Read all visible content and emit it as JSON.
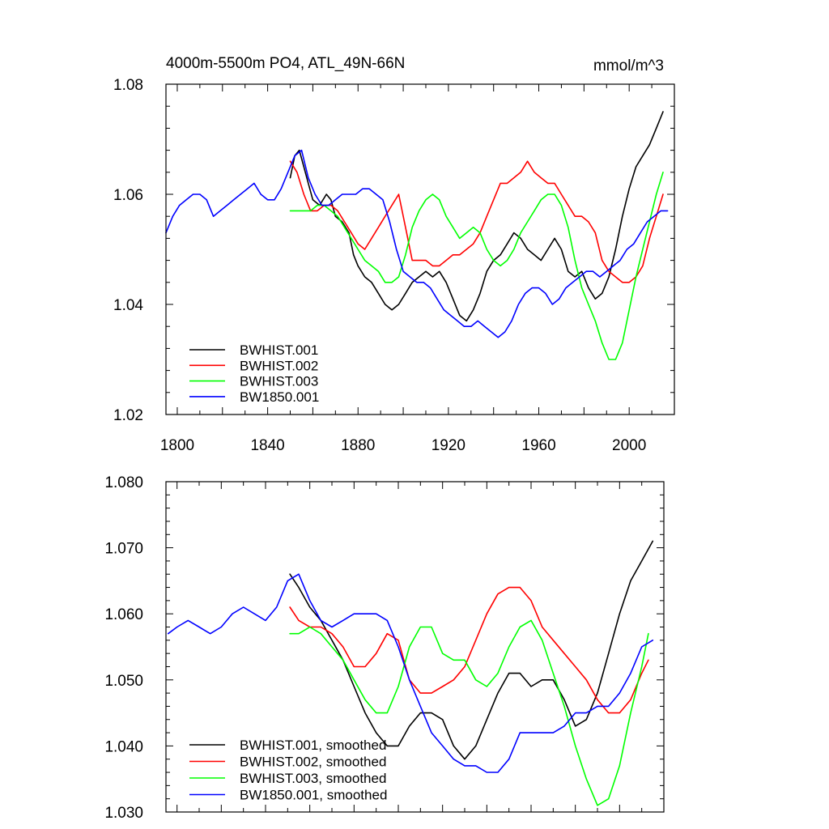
{
  "chart_data": [
    {
      "type": "line",
      "title": "4000m-5500m PO4, ATL_49N-66N",
      "units": "mmol/m^3",
      "xlabel": "",
      "ylabel": "",
      "xlim": [
        1795,
        2020
      ],
      "ylim": [
        1.02,
        1.08
      ],
      "x_ticks": [
        1800,
        1840,
        1880,
        1920,
        1960,
        2000
      ],
      "x_tick_labels": [
        "1800",
        "1840",
        "1880",
        "1920",
        "1960",
        "2000"
      ],
      "y_ticks": [
        1.02,
        1.04,
        1.06,
        1.08
      ],
      "y_tick_labels": [
        "1.02",
        "1.04",
        "1.06",
        "1.08"
      ],
      "grid": false,
      "legend_position": "bottom-left",
      "series": [
        {
          "name": "BWHIST.001",
          "color": "#000000",
          "x": [
            1850,
            1852,
            1854,
            1856,
            1858,
            1860,
            1863,
            1866,
            1868,
            1870,
            1873,
            1876,
            1878,
            1880,
            1883,
            1886,
            1889,
            1892,
            1895,
            1898,
            1901,
            1904,
            1907,
            1910,
            1913,
            1916,
            1919,
            1922,
            1925,
            1928,
            1931,
            1934,
            1937,
            1940,
            1943,
            1946,
            1949,
            1952,
            1955,
            1958,
            1961,
            1964,
            1967,
            1970,
            1973,
            1976,
            1979,
            1982,
            1985,
            1988,
            1991,
            1994,
            1997,
            2000,
            2003,
            2006,
            2009,
            2012,
            2015
          ],
          "y": [
            1.063,
            1.067,
            1.068,
            1.065,
            1.062,
            1.059,
            1.058,
            1.06,
            1.059,
            1.056,
            1.055,
            1.053,
            1.049,
            1.047,
            1.045,
            1.044,
            1.042,
            1.04,
            1.039,
            1.04,
            1.042,
            1.044,
            1.045,
            1.046,
            1.045,
            1.046,
            1.044,
            1.041,
            1.038,
            1.037,
            1.039,
            1.042,
            1.046,
            1.048,
            1.049,
            1.051,
            1.053,
            1.052,
            1.05,
            1.049,
            1.048,
            1.05,
            1.052,
            1.05,
            1.046,
            1.045,
            1.046,
            1.043,
            1.041,
            1.042,
            1.045,
            1.05,
            1.056,
            1.061,
            1.065,
            1.067,
            1.069,
            1.072,
            1.075
          ]
        },
        {
          "name": "BWHIST.002",
          "color": "#ff0000",
          "x": [
            1850,
            1853,
            1856,
            1859,
            1862,
            1865,
            1868,
            1871,
            1874,
            1877,
            1880,
            1883,
            1886,
            1889,
            1892,
            1895,
            1898,
            1901,
            1904,
            1907,
            1910,
            1913,
            1916,
            1919,
            1922,
            1925,
            1928,
            1931,
            1934,
            1937,
            1940,
            1943,
            1946,
            1949,
            1952,
            1955,
            1958,
            1961,
            1964,
            1967,
            1970,
            1973,
            1976,
            1979,
            1982,
            1985,
            1988,
            1991,
            1994,
            1997,
            2000,
            2003,
            2006,
            2009,
            2012,
            2015
          ],
          "y": [
            1.066,
            1.064,
            1.06,
            1.057,
            1.057,
            1.058,
            1.058,
            1.057,
            1.055,
            1.053,
            1.051,
            1.05,
            1.052,
            1.054,
            1.056,
            1.058,
            1.06,
            1.054,
            1.048,
            1.048,
            1.048,
            1.047,
            1.047,
            1.048,
            1.049,
            1.049,
            1.05,
            1.051,
            1.053,
            1.056,
            1.059,
            1.062,
            1.062,
            1.063,
            1.064,
            1.066,
            1.064,
            1.063,
            1.062,
            1.062,
            1.06,
            1.058,
            1.056,
            1.056,
            1.055,
            1.053,
            1.048,
            1.046,
            1.045,
            1.044,
            1.044,
            1.045,
            1.047,
            1.052,
            1.056,
            1.06
          ]
        },
        {
          "name": "BWHIST.003",
          "color": "#00ff00",
          "x": [
            1850,
            1853,
            1856,
            1859,
            1862,
            1865,
            1868,
            1871,
            1874,
            1877,
            1880,
            1883,
            1886,
            1889,
            1892,
            1895,
            1898,
            1901,
            1904,
            1907,
            1910,
            1913,
            1916,
            1919,
            1922,
            1925,
            1928,
            1931,
            1934,
            1937,
            1940,
            1943,
            1946,
            1949,
            1952,
            1955,
            1958,
            1961,
            1964,
            1967,
            1970,
            1973,
            1976,
            1979,
            1982,
            1985,
            1988,
            1991,
            1994,
            1997,
            2000,
            2003,
            2006,
            2009,
            2012,
            2015
          ],
          "y": [
            1.057,
            1.057,
            1.057,
            1.057,
            1.058,
            1.058,
            1.057,
            1.056,
            1.054,
            1.052,
            1.05,
            1.048,
            1.047,
            1.046,
            1.044,
            1.044,
            1.045,
            1.049,
            1.054,
            1.057,
            1.059,
            1.06,
            1.059,
            1.056,
            1.054,
            1.052,
            1.053,
            1.054,
            1.053,
            1.05,
            1.048,
            1.047,
            1.048,
            1.05,
            1.053,
            1.055,
            1.057,
            1.059,
            1.06,
            1.06,
            1.058,
            1.054,
            1.048,
            1.043,
            1.04,
            1.037,
            1.033,
            1.03,
            1.03,
            1.033,
            1.039,
            1.045,
            1.05,
            1.055,
            1.06,
            1.064
          ]
        },
        {
          "name": "BW1850.001",
          "color": "#0000ff",
          "x": [
            1795,
            1798,
            1801,
            1804,
            1807,
            1810,
            1813,
            1816,
            1819,
            1822,
            1825,
            1828,
            1831,
            1834,
            1837,
            1840,
            1843,
            1846,
            1849,
            1852,
            1855,
            1858,
            1861,
            1864,
            1867,
            1870,
            1873,
            1876,
            1879,
            1882,
            1885,
            1888,
            1891,
            1894,
            1897,
            1900,
            1903,
            1906,
            1909,
            1912,
            1915,
            1918,
            1921,
            1924,
            1927,
            1930,
            1933,
            1936,
            1939,
            1942,
            1945,
            1948,
            1951,
            1954,
            1957,
            1960,
            1963,
            1966,
            1969,
            1972,
            1975,
            1978,
            1981,
            1984,
            1987,
            1990,
            1993,
            1996,
            1999,
            2002,
            2005,
            2008,
            2011,
            2014,
            2017
          ],
          "y": [
            1.053,
            1.056,
            1.058,
            1.059,
            1.06,
            1.06,
            1.059,
            1.056,
            1.057,
            1.058,
            1.059,
            1.06,
            1.061,
            1.062,
            1.06,
            1.059,
            1.059,
            1.061,
            1.064,
            1.067,
            1.068,
            1.063,
            1.06,
            1.058,
            1.058,
            1.059,
            1.06,
            1.06,
            1.06,
            1.061,
            1.061,
            1.06,
            1.059,
            1.055,
            1.05,
            1.046,
            1.045,
            1.044,
            1.044,
            1.043,
            1.041,
            1.039,
            1.038,
            1.037,
            1.036,
            1.036,
            1.037,
            1.036,
            1.035,
            1.034,
            1.035,
            1.037,
            1.04,
            1.042,
            1.043,
            1.043,
            1.042,
            1.04,
            1.041,
            1.043,
            1.044,
            1.045,
            1.046,
            1.046,
            1.045,
            1.046,
            1.047,
            1.048,
            1.05,
            1.051,
            1.053,
            1.055,
            1.056,
            1.057,
            1.057
          ]
        }
      ]
    },
    {
      "type": "line",
      "title": "",
      "xlabel": "",
      "ylabel": "",
      "xlim": [
        1795,
        2020
      ],
      "ylim": [
        1.03,
        1.08
      ],
      "x_ticks": [
        1800,
        1840,
        1880,
        1920,
        1960,
        2000
      ],
      "x_tick_labels": [],
      "y_ticks": [
        1.03,
        1.04,
        1.05,
        1.06,
        1.07,
        1.08
      ],
      "y_tick_labels": [
        "1.030",
        "1.040",
        "1.050",
        "1.060",
        "1.070",
        "1.080"
      ],
      "grid": false,
      "legend_position": "bottom-left",
      "series": [
        {
          "name": "BWHIST.001, smoothed",
          "color": "#000000",
          "x": [
            1851,
            1855,
            1860,
            1865,
            1870,
            1875,
            1880,
            1885,
            1890,
            1895,
            1900,
            1905,
            1910,
            1915,
            1920,
            1925,
            1930,
            1935,
            1940,
            1945,
            1950,
            1955,
            1960,
            1965,
            1970,
            1975,
            1980,
            1985,
            1990,
            1995,
            2000,
            2005,
            2010,
            2015
          ],
          "y": [
            1.066,
            1.064,
            1.061,
            1.059,
            1.056,
            1.053,
            1.049,
            1.045,
            1.042,
            1.04,
            1.04,
            1.043,
            1.045,
            1.045,
            1.044,
            1.04,
            1.038,
            1.04,
            1.044,
            1.048,
            1.051,
            1.051,
            1.049,
            1.05,
            1.05,
            1.047,
            1.043,
            1.044,
            1.048,
            1.054,
            1.06,
            1.065,
            1.068,
            1.071
          ]
        },
        {
          "name": "BWHIST.002, smoothed",
          "color": "#ff0000",
          "x": [
            1851,
            1855,
            1860,
            1865,
            1870,
            1875,
            1880,
            1885,
            1890,
            1895,
            1900,
            1905,
            1910,
            1915,
            1920,
            1925,
            1930,
            1935,
            1940,
            1945,
            1950,
            1955,
            1960,
            1965,
            1970,
            1975,
            1980,
            1985,
            1990,
            1995,
            2000,
            2005,
            2010,
            2013
          ],
          "y": [
            1.061,
            1.059,
            1.058,
            1.058,
            1.057,
            1.055,
            1.052,
            1.052,
            1.054,
            1.057,
            1.056,
            1.05,
            1.048,
            1.048,
            1.049,
            1.05,
            1.052,
            1.056,
            1.06,
            1.063,
            1.064,
            1.064,
            1.062,
            1.058,
            1.056,
            1.054,
            1.052,
            1.05,
            1.047,
            1.045,
            1.045,
            1.047,
            1.051,
            1.053
          ]
        },
        {
          "name": "BWHIST.003, smoothed",
          "color": "#00ff00",
          "x": [
            1851,
            1855,
            1860,
            1865,
            1870,
            1875,
            1880,
            1885,
            1890,
            1895,
            1900,
            1905,
            1910,
            1915,
            1920,
            1925,
            1930,
            1935,
            1940,
            1945,
            1950,
            1955,
            1960,
            1965,
            1970,
            1975,
            1980,
            1985,
            1990,
            1995,
            2000,
            2005,
            2010,
            2013
          ],
          "y": [
            1.057,
            1.057,
            1.058,
            1.057,
            1.055,
            1.053,
            1.05,
            1.047,
            1.045,
            1.045,
            1.049,
            1.055,
            1.058,
            1.058,
            1.054,
            1.053,
            1.053,
            1.05,
            1.049,
            1.051,
            1.055,
            1.058,
            1.059,
            1.056,
            1.051,
            1.046,
            1.04,
            1.035,
            1.031,
            1.032,
            1.037,
            1.045,
            1.052,
            1.057
          ]
        },
        {
          "name": "BW1850.001, smoothed",
          "color": "#0000ff",
          "x": [
            1796,
            1800,
            1805,
            1810,
            1815,
            1820,
            1825,
            1830,
            1835,
            1840,
            1845,
            1850,
            1855,
            1860,
            1865,
            1870,
            1875,
            1880,
            1885,
            1890,
            1895,
            1900,
            1905,
            1910,
            1915,
            1920,
            1925,
            1930,
            1935,
            1940,
            1945,
            1950,
            1955,
            1960,
            1965,
            1970,
            1975,
            1980,
            1985,
            1990,
            1995,
            2000,
            2005,
            2010,
            2015
          ],
          "y": [
            1.057,
            1.058,
            1.059,
            1.058,
            1.057,
            1.058,
            1.06,
            1.061,
            1.06,
            1.059,
            1.061,
            1.065,
            1.066,
            1.062,
            1.059,
            1.058,
            1.059,
            1.06,
            1.06,
            1.06,
            1.059,
            1.055,
            1.05,
            1.046,
            1.042,
            1.04,
            1.038,
            1.037,
            1.037,
            1.036,
            1.036,
            1.038,
            1.042,
            1.042,
            1.042,
            1.042,
            1.043,
            1.045,
            1.045,
            1.046,
            1.046,
            1.048,
            1.051,
            1.055,
            1.056
          ]
        }
      ]
    }
  ]
}
